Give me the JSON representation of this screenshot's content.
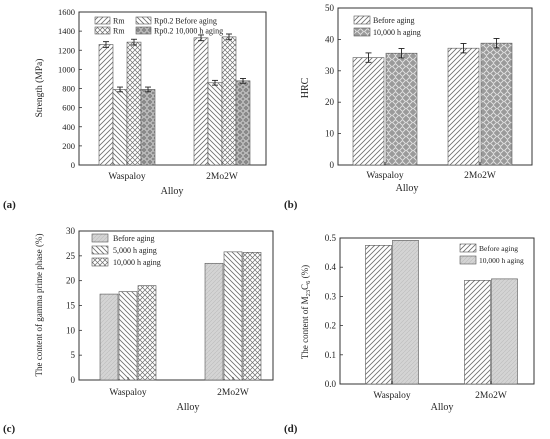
{
  "figure": {
    "panel_labels": [
      "(a)",
      "(b)",
      "(c)",
      "(d)"
    ]
  },
  "chart_data": [
    {
      "type": "bar",
      "panel": "(a)",
      "xlabel": "Alloy",
      "ylabel": "Strength (MPa)",
      "ylim": [
        0,
        1600
      ],
      "yticks": [
        0,
        200,
        400,
        600,
        800,
        1000,
        1200,
        1400,
        1600
      ],
      "categories": [
        "Waspaloy",
        "2Mo2W"
      ],
      "legend_position": "top-left",
      "legend_labels": [
        "Rm",
        "Rm",
        "Rp0.2 Before aging",
        "Rp0.2 10,000 h aging"
      ],
      "series": [
        {
          "values": [
            1260,
            1330
          ],
          "errors": [
            30,
            30
          ]
        },
        {
          "values": [
            790,
            860
          ],
          "errors": [
            25,
            25
          ]
        },
        {
          "values": [
            1285,
            1340
          ],
          "errors": [
            30,
            30
          ]
        },
        {
          "values": [
            790,
            880
          ],
          "errors": [
            25,
            25
          ]
        }
      ],
      "colors": {
        "fill_light": "#ffffff",
        "fill_dark": "#8c8c8c",
        "hatch": "#7a7a7a"
      }
    },
    {
      "type": "bar",
      "panel": "(b)",
      "xlabel": "Alloy",
      "ylabel": "HRC",
      "ylim": [
        0,
        50
      ],
      "yticks": [
        0,
        10,
        20,
        30,
        40,
        50
      ],
      "categories": [
        "Waspaloy",
        "2Mo2W"
      ],
      "legend_position": "top-left",
      "series": [
        {
          "name": "Before aging",
          "values": [
            34.2,
            37.2
          ],
          "errors": [
            1.5,
            1.5
          ]
        },
        {
          "name": "10,000 h aging",
          "values": [
            35.6,
            38.8
          ],
          "errors": [
            1.5,
            1.5
          ]
        }
      ]
    },
    {
      "type": "bar",
      "panel": "(c)",
      "xlabel": "Alloy",
      "ylabel": "The content of gamma prime phase (%)",
      "ylim": [
        0,
        30
      ],
      "yticks": [
        0,
        5,
        10,
        15,
        20,
        25,
        30
      ],
      "categories": [
        "Waspaloy",
        "2Mo2W"
      ],
      "legend_position": "top-left",
      "series": [
        {
          "name": "Before aging",
          "values": [
            17.3,
            23.5
          ]
        },
        {
          "name": "5,000 h aging",
          "values": [
            17.8,
            25.8
          ]
        },
        {
          "name": "10,000 h aging",
          "values": [
            19.0,
            25.7
          ]
        }
      ]
    },
    {
      "type": "bar",
      "panel": "(d)",
      "xlabel": "Alloy",
      "ylabel_parts": {
        "main": "The content of M",
        "sub1": "23",
        "mid": "C",
        "sub2": "6",
        "end": " (%)"
      },
      "ylim": [
        0,
        0.5
      ],
      "yticks": [
        0.0,
        0.1,
        0.2,
        0.3,
        0.4,
        0.5
      ],
      "categories": [
        "Waspaloy",
        "2Mo2W"
      ],
      "legend_position": "top-right",
      "series": [
        {
          "name": "Before aging",
          "values": [
            0.475,
            0.355
          ]
        },
        {
          "name": "10,000 h aging",
          "values": [
            0.492,
            0.36
          ]
        }
      ]
    }
  ]
}
